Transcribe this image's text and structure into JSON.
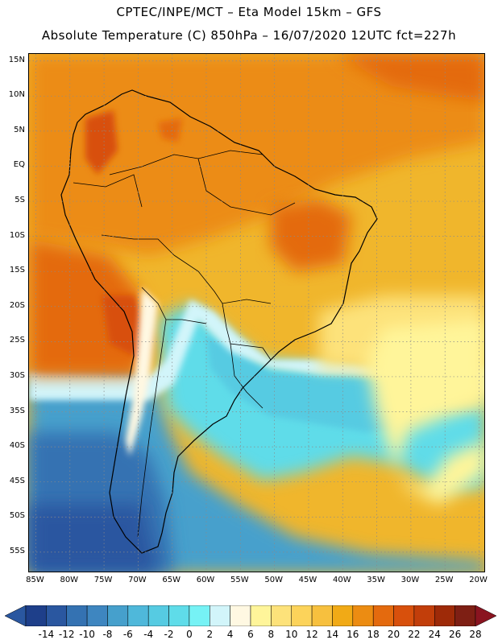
{
  "title_line1": "CPTEC/INPE/MCT –  Eta Model 15km – GFS",
  "title_line2": "Absolute Temperature (C) 850hPa – 16/07/2020 12UTC fct=227h",
  "map": {
    "lat_labels": [
      "15N",
      "10N",
      "5N",
      "EQ",
      "5S",
      "10S",
      "15S",
      "20S",
      "25S",
      "30S",
      "35S",
      "40S",
      "45S",
      "50S",
      "55S"
    ],
    "lon_labels": [
      "85W",
      "80W",
      "75W",
      "70W",
      "65W",
      "60W",
      "55W",
      "50W",
      "45W",
      "40W",
      "35W",
      "30W",
      "25W",
      "20W"
    ],
    "extent": {
      "lon_min": -86,
      "lon_max": -19,
      "lat_min": -58,
      "lat_max": 16
    }
  },
  "colorbar": {
    "labels": [
      "-14",
      "-12",
      "-10",
      "-8",
      "-6",
      "-4",
      "-2",
      "0",
      "2",
      "4",
      "6",
      "8",
      "10",
      "12",
      "14",
      "16",
      "18",
      "20",
      "22",
      "24",
      "26",
      "28"
    ],
    "colors": [
      "#1e3f8a",
      "#2a57a0",
      "#3472b2",
      "#3e86c0",
      "#46a0cc",
      "#4fb8da",
      "#56cbe2",
      "#5fdce9",
      "#76f2f5",
      "#d2f5fa",
      "#fff8e2",
      "#fff59a",
      "#fde27a",
      "#fcd35a",
      "#f7c03e",
      "#f1aa16",
      "#ec8c12",
      "#e46a0e",
      "#d8500c",
      "#c23e0a",
      "#9e2a08",
      "#7e1f14"
    ],
    "under_color": "#2a57a0",
    "over_color": "#8a1420"
  }
}
